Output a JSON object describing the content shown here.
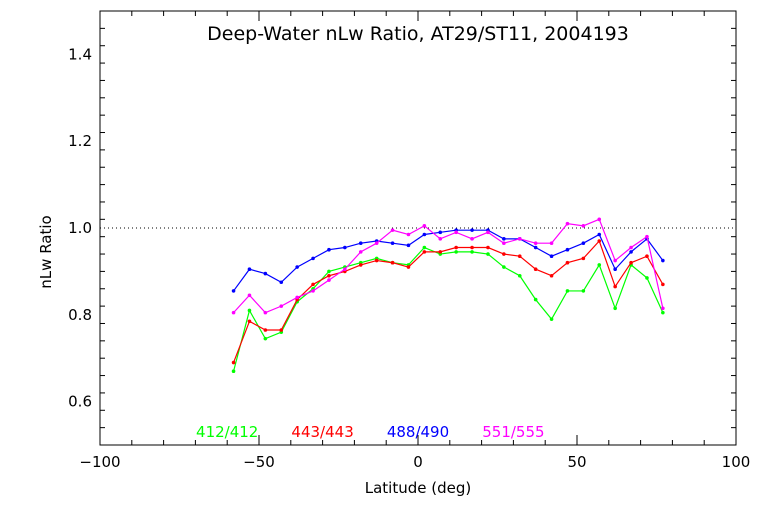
{
  "chart_data": {
    "type": "line",
    "title": "Deep-Water nLw Ratio, AT29/ST11, 2004193",
    "xlabel": "Latitude (deg)",
    "ylabel": "nLw Ratio",
    "xlim": [
      -100,
      100
    ],
    "ylim": [
      0.5,
      1.5
    ],
    "xticks": [
      -100,
      -50,
      0,
      50,
      100
    ],
    "yticks": [
      0.6,
      0.8,
      1.0,
      1.2,
      1.4
    ],
    "xtick_labels": [
      "−100",
      "−50",
      "0",
      "50",
      "100"
    ],
    "ytick_labels": [
      "0.6",
      "0.8",
      "1.0",
      "1.2",
      "1.4"
    ],
    "reference_line": {
      "y": 1.0,
      "style": "dotted"
    },
    "grid": false,
    "legend_position": "bottom, inside plot",
    "x": [
      -58,
      -53,
      -48,
      -43,
      -38,
      -33,
      -28,
      -23,
      -18,
      -13,
      -8,
      -3,
      2,
      7,
      12,
      17,
      22,
      27,
      32,
      37,
      42,
      47,
      52,
      57,
      62,
      67,
      72,
      77
    ],
    "series": [
      {
        "name": "412/412",
        "color": "#00ff00",
        "values": [
          0.67,
          0.81,
          0.745,
          0.76,
          0.83,
          0.86,
          0.9,
          0.91,
          0.92,
          0.93,
          0.92,
          0.915,
          0.955,
          0.94,
          0.945,
          0.945,
          0.94,
          0.91,
          0.89,
          0.835,
          0.79,
          0.855,
          0.855,
          0.915,
          0.815,
          0.915,
          0.885,
          0.805
        ]
      },
      {
        "name": "443/443",
        "color": "#ff0000",
        "values": [
          0.69,
          0.785,
          0.765,
          0.765,
          0.835,
          0.87,
          0.89,
          0.9,
          0.915,
          0.925,
          0.92,
          0.91,
          0.945,
          0.945,
          0.955,
          0.955,
          0.955,
          0.94,
          0.935,
          0.905,
          0.89,
          0.92,
          0.93,
          0.97,
          0.865,
          0.92,
          0.935,
          0.87
        ]
      },
      {
        "name": "488/490",
        "color": "#0000ff",
        "values": [
          0.855,
          0.905,
          0.895,
          0.875,
          0.91,
          0.93,
          0.95,
          0.955,
          0.965,
          0.97,
          0.965,
          0.96,
          0.985,
          0.99,
          0.995,
          0.995,
          0.995,
          0.975,
          0.975,
          0.955,
          0.935,
          0.95,
          0.965,
          0.985,
          0.905,
          0.945,
          0.975,
          0.925
        ]
      },
      {
        "name": "551/555",
        "color": "#ff00ff",
        "values": [
          0.805,
          0.845,
          0.805,
          0.82,
          0.84,
          0.855,
          0.88,
          0.905,
          0.945,
          0.965,
          0.995,
          0.985,
          1.005,
          0.975,
          0.99,
          0.975,
          0.99,
          0.965,
          0.975,
          0.965,
          0.965,
          1.01,
          1.005,
          1.02,
          0.925,
          0.955,
          0.98,
          0.815
        ]
      }
    ]
  }
}
